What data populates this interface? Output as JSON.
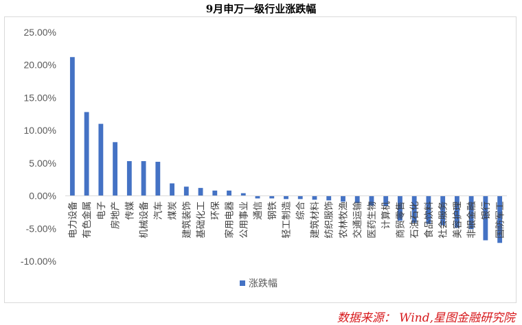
{
  "chart_data": {
    "type": "bar",
    "title": "9月申万一级行业涨跌幅",
    "categories": [
      "电力设备",
      "有色金属",
      "电子",
      "房地产",
      "传媒",
      "机械设备",
      "汽车",
      "煤炭",
      "建筑装饰",
      "基础化工",
      "环保",
      "家用电器",
      "公用事业",
      "通信",
      "钢铁",
      "轻工制造",
      "综合",
      "建筑材料",
      "纺织服饰",
      "农林牧渔",
      "交通运输",
      "医药生物",
      "计算机",
      "商贸零售",
      "石油石化",
      "食品饮料",
      "社会服务",
      "美容护理",
      "非银金融",
      "银行",
      "国防军工"
    ],
    "series": [
      {
        "name": "涨跌幅",
        "values": [
          21.2,
          12.8,
          11.0,
          8.2,
          5.3,
          5.3,
          5.2,
          1.9,
          1.4,
          1.2,
          0.8,
          0.8,
          0.4,
          -0.4,
          -0.4,
          -0.5,
          -0.5,
          -0.6,
          -0.7,
          -0.9,
          -1.1,
          -1.5,
          -1.6,
          -3.8,
          -4.1,
          -4.3,
          -4.5,
          -4.9,
          -5.1,
          -6.8,
          -7.2
        ]
      }
    ],
    "ylim": [
      -10,
      25
    ],
    "yticks": [
      "-10.00%",
      "-5.00%",
      "0.00%",
      "5.00%",
      "10.00%",
      "15.00%",
      "20.00%",
      "25.00%"
    ],
    "ytick_values": [
      -10,
      -5,
      0,
      5,
      10,
      15,
      20,
      25
    ],
    "legend_position": "bottom",
    "grid": false,
    "bar_color": "#4472c4"
  },
  "source": "数据来源： Wind,星图金融研究院"
}
